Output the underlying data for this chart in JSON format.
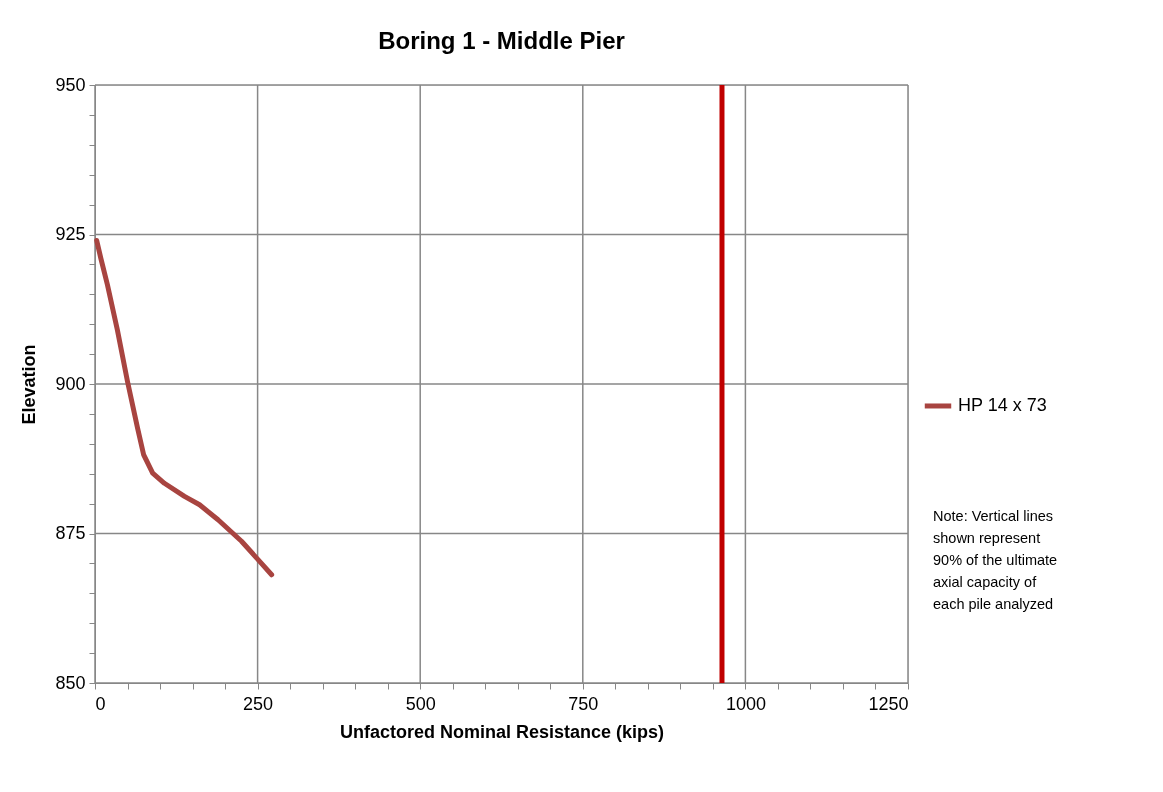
{
  "chart_data": {
    "type": "line",
    "title": "Boring 1 - Middle Pier",
    "xlabel": "Unfactored Nominal Resistance (kips)",
    "ylabel": "Elevation",
    "xlim": [
      0,
      1250
    ],
    "ylim": [
      850,
      950
    ],
    "xticks": [
      0,
      {
        "value": 50,
        "label": null
      },
      {
        "value": 100,
        "label": null
      },
      {
        "value": 150,
        "label": null
      },
      {
        "value": 200,
        "label": null
      },
      250,
      {
        "value": 300,
        "label": null
      },
      {
        "value": 350,
        "label": null
      },
      {
        "value": 400,
        "label": null
      },
      {
        "value": 450,
        "label": null
      },
      500,
      {
        "value": 550,
        "label": null
      },
      {
        "value": 600,
        "label": null
      },
      {
        "value": 650,
        "label": null
      },
      {
        "value": 700,
        "label": null
      },
      750,
      {
        "value": 800,
        "label": null
      },
      {
        "value": 850,
        "label": null
      },
      {
        "value": 900,
        "label": null
      },
      {
        "value": 950,
        "label": null
      },
      1000,
      {
        "value": 1050,
        "label": null
      },
      {
        "value": 1100,
        "label": null
      },
      {
        "value": 1150,
        "label": null
      },
      {
        "value": 1200,
        "label": null
      },
      1250
    ],
    "yticks": [
      850,
      {
        "value": 855,
        "label": null
      },
      {
        "value": 860,
        "label": null
      },
      {
        "value": 865,
        "label": null
      },
      {
        "value": 870,
        "label": null
      },
      875,
      {
        "value": 880,
        "label": null
      },
      {
        "value": 885,
        "label": null
      },
      {
        "value": 890,
        "label": null
      },
      {
        "value": 895,
        "label": null
      },
      900,
      {
        "value": 905,
        "label": null
      },
      {
        "value": 910,
        "label": null
      },
      {
        "value": 915,
        "label": null
      },
      {
        "value": 920,
        "label": null
      },
      925,
      {
        "value": 930,
        "label": null
      },
      {
        "value": 935,
        "label": null
      },
      {
        "value": 940,
        "label": null
      },
      {
        "value": 945,
        "label": null
      },
      950
    ],
    "grid": true,
    "legend": "right",
    "series": [
      {
        "name": "HP 14 x 73",
        "color": "#a84440",
        "x": [
          2.6,
          8.8,
          19.1,
          34.5,
          50,
          65.5,
          74.7,
          88.7,
          106.7,
          137.6,
          160.8,
          189.2,
          225.3,
          271.6
        ],
        "values": [
          924.0,
          921.1,
          916.6,
          909.0,
          900.4,
          892.6,
          888.2,
          885.1,
          883.4,
          881.2,
          879.8,
          877.3,
          873.7,
          868.1
        ]
      }
    ],
    "ref_lines": [
      {
        "axis": "x",
        "value": 964,
        "color": "#c00000"
      }
    ],
    "annotations": [
      "Note:  Vertical lines\nshown represent\n90% of the ultimate\naxial capacity of\neach pile analyzed"
    ]
  }
}
